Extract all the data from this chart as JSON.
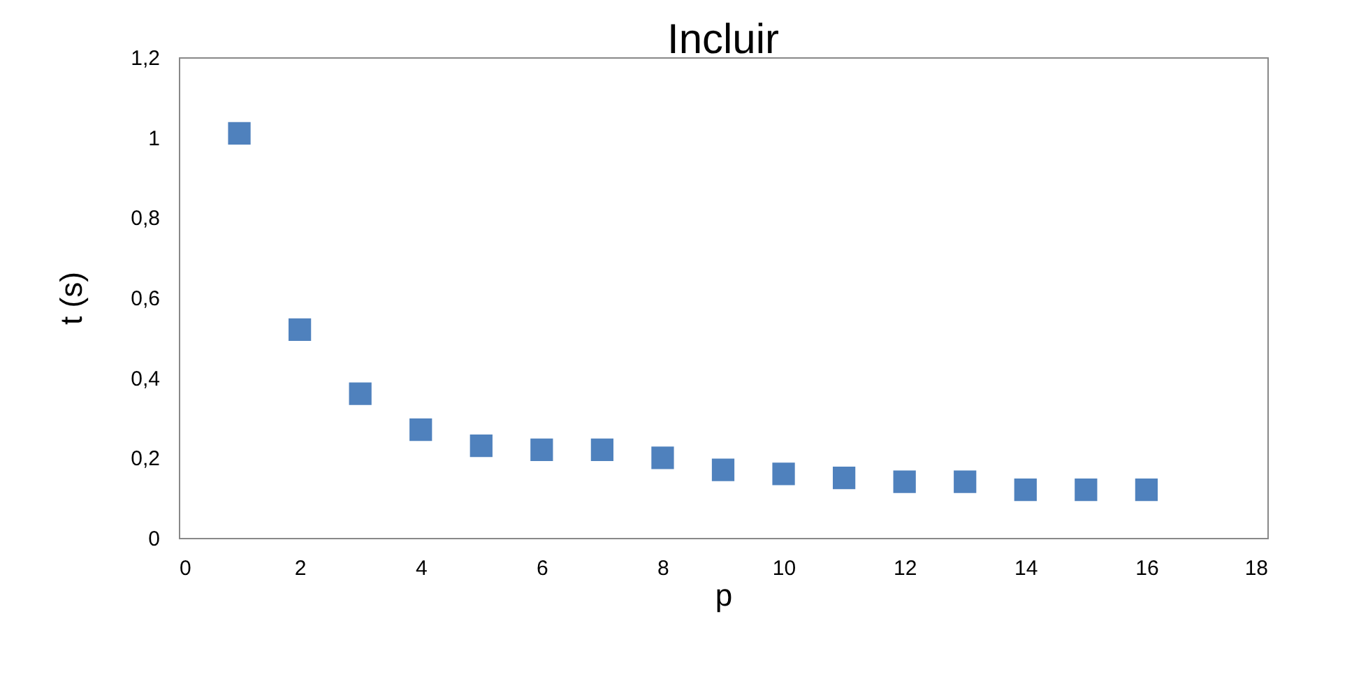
{
  "chart_data": {
    "type": "scatter",
    "title": "Incluir",
    "xlabel": "p",
    "ylabel": "t (s)",
    "x": [
      1,
      2,
      3,
      4,
      5,
      6,
      7,
      8,
      9,
      10,
      11,
      12,
      13,
      14,
      15,
      16
    ],
    "series": [
      {
        "color": "#4f81bd",
        "values": [
          1.01,
          0.52,
          0.36,
          0.27,
          0.23,
          0.22,
          0.22,
          0.2,
          0.17,
          0.16,
          0.15,
          0.14,
          0.14,
          0.12,
          0.12,
          0.12
        ]
      }
    ],
    "xlim": [
      0,
      18
    ],
    "xticks": [
      0,
      2,
      4,
      6,
      8,
      10,
      12,
      14,
      16,
      18
    ],
    "ylim": [
      0,
      1.2
    ],
    "yticks": [
      0,
      {
        "value": 0.2,
        "label": "0,2"
      },
      {
        "value": 0.4,
        "label": "0,4"
      },
      {
        "value": 0.6,
        "label": "0,6"
      },
      {
        "value": 0.8,
        "label": "0,8"
      },
      1,
      {
        "value": 1.2,
        "label": "1,2"
      }
    ],
    "marker": "square",
    "grid": false,
    "legend": false
  }
}
